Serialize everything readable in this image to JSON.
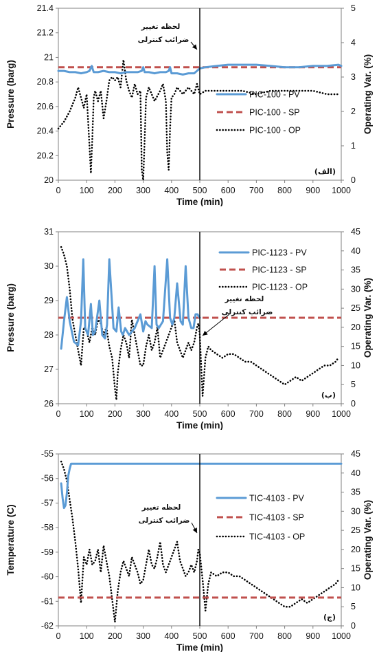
{
  "colors": {
    "pv": "#5b9bd5",
    "sp": "#c0504d",
    "op": "#000000",
    "axis": "#808080"
  },
  "chart_data": [
    {
      "type": "line",
      "panel_tag": "(الف)",
      "ylabel": "Pressure (barg)",
      "ylabel2": "Operating Var. (%)",
      "xlabel": "Time (min)",
      "xlim": [
        0,
        1000
      ],
      "ylim": [
        20,
        21.4
      ],
      "y2lim": [
        0,
        5
      ],
      "xticks": [
        0,
        100,
        200,
        300,
        400,
        500,
        600,
        700,
        800,
        900,
        1000
      ],
      "yticks": [
        20,
        20.2,
        20.4,
        20.6,
        20.8,
        21,
        21.2,
        21.4
      ],
      "yticks_labels": [
        "20",
        "20.2",
        "20.4",
        "20.6",
        "20.8",
        "21",
        "21.2",
        "21.4"
      ],
      "y2ticks": [
        0,
        1,
        2,
        3,
        4,
        5
      ],
      "legend_position": "center-right",
      "vline_x": 500,
      "annotation": {
        "line1": "لحظه تغییر",
        "line2": "ضرائب کنترلی"
      },
      "series": [
        {
          "name": "PIC-100 - PV",
          "axis": "left",
          "style": "solid",
          "x": [
            0,
            20,
            40,
            60,
            80,
            100,
            110,
            118,
            125,
            140,
            160,
            180,
            200,
            220,
            240,
            260,
            280,
            295,
            300,
            305,
            320,
            340,
            360,
            380,
            390,
            395,
            400,
            420,
            440,
            460,
            480,
            500,
            520,
            560,
            600,
            650,
            700,
            750,
            800,
            850,
            900,
            950,
            990,
            1000
          ],
          "y": [
            20.89,
            20.89,
            20.88,
            20.88,
            20.87,
            20.88,
            20.89,
            20.93,
            20.88,
            20.88,
            20.89,
            20.88,
            20.88,
            20.87,
            20.88,
            20.88,
            20.88,
            20.89,
            20.92,
            20.88,
            20.88,
            20.87,
            20.88,
            20.88,
            20.89,
            20.92,
            20.87,
            20.87,
            20.86,
            20.87,
            20.87,
            20.91,
            20.92,
            20.93,
            20.94,
            20.94,
            20.94,
            20.93,
            20.92,
            20.92,
            20.93,
            20.93,
            20.94,
            20.93
          ]
        },
        {
          "name": "PIC-100 - SP",
          "axis": "left",
          "style": "dashed",
          "x": [
            0,
            1000
          ],
          "y": [
            20.92,
            20.92
          ]
        },
        {
          "name": "PIC-100 - OP",
          "axis": "right",
          "style": "dotted",
          "x": [
            0,
            20,
            40,
            60,
            70,
            80,
            90,
            100,
            110,
            115,
            120,
            125,
            130,
            140,
            150,
            160,
            170,
            180,
            190,
            200,
            210,
            220,
            230,
            240,
            250,
            260,
            270,
            280,
            290,
            295,
            300,
            305,
            310,
            320,
            340,
            360,
            370,
            380,
            385,
            390,
            395,
            400,
            410,
            420,
            440,
            460,
            480,
            490,
            500,
            520,
            560,
            600,
            650,
            700,
            750,
            800,
            850,
            900,
            950,
            990
          ],
          "y": [
            1.5,
            1.7,
            2.0,
            2.4,
            2.7,
            2.4,
            2.1,
            2.5,
            1.0,
            0.2,
            1.2,
            2.4,
            2.6,
            2.3,
            2.6,
            1.8,
            2.3,
            2.9,
            3.0,
            2.9,
            3.0,
            2.7,
            3.5,
            2.9,
            2.6,
            2.4,
            2.8,
            2.5,
            2.6,
            0.3,
            0.0,
            1.2,
            2.4,
            2.7,
            2.3,
            2.6,
            2.8,
            2.3,
            0.8,
            0.3,
            1.5,
            2.4,
            2.5,
            2.7,
            2.5,
            2.7,
            2.5,
            2.8,
            2.5,
            2.6,
            2.6,
            2.6,
            2.6,
            2.5,
            2.6,
            2.6,
            2.6,
            2.6,
            2.5,
            2.5
          ]
        }
      ]
    },
    {
      "type": "line",
      "panel_tag": "(ب)",
      "ylabel": "Pressure (barg)",
      "ylabel2": "Operating Var. (%)",
      "xlabel": "Time (min)",
      "xlim": [
        0,
        1000
      ],
      "ylim": [
        26,
        31
      ],
      "y2lim": [
        0,
        45
      ],
      "xticks": [
        0,
        100,
        200,
        300,
        400,
        500,
        600,
        700,
        800,
        900,
        1000
      ],
      "yticks": [
        26,
        27,
        28,
        29,
        30,
        31
      ],
      "yticks_labels": [
        "26",
        "27",
        "28",
        "29",
        "30",
        "31"
      ],
      "y2ticks": [
        0,
        5,
        10,
        15,
        20,
        25,
        30,
        35,
        40,
        45
      ],
      "legend_position": "top-right",
      "vline_x": 500,
      "annotation": {
        "line1": "لحظه تغییر",
        "line2": "ضرائب کنترلی"
      },
      "series": [
        {
          "name": "PIC-1123 - PV",
          "axis": "left",
          "style": "solid",
          "x": [
            10,
            20,
            30,
            40,
            55,
            70,
            80,
            88,
            95,
            105,
            115,
            122,
            130,
            145,
            155,
            165,
            172,
            180,
            195,
            205,
            213,
            222,
            228,
            236,
            250,
            270,
            290,
            300,
            308,
            315,
            330,
            340,
            347,
            355,
            370,
            385,
            395,
            403,
            410,
            420,
            432,
            440,
            450,
            460,
            470,
            478,
            485,
            492,
            500
          ],
          "y": [
            27.6,
            28.4,
            29.1,
            28.4,
            27.8,
            27.7,
            28.4,
            30.2,
            28.2,
            28.0,
            28.9,
            28.0,
            28.1,
            29.0,
            28.0,
            27.9,
            28.3,
            30.2,
            28.2,
            28.1,
            28.8,
            28.1,
            28.0,
            28.2,
            28.0,
            28.2,
            28.6,
            28.1,
            28.4,
            28.3,
            28.2,
            30.0,
            28.3,
            28.2,
            28.4,
            30.2,
            28.5,
            28.3,
            28.5,
            29.5,
            28.4,
            28.3,
            30.0,
            28.5,
            28.2,
            28.2,
            28.6,
            28.6,
            28.5
          ]
        },
        {
          "name": "PIC-1123 - SP",
          "axis": "left",
          "style": "dashed",
          "x": [
            0,
            1000
          ],
          "y": [
            28.5,
            28.5
          ]
        },
        {
          "name": "PIC-1123 - OP",
          "axis": "right",
          "style": "dotted",
          "x": [
            10,
            20,
            30,
            40,
            50,
            60,
            70,
            80,
            90,
            100,
            110,
            120,
            130,
            140,
            150,
            160,
            170,
            180,
            190,
            200,
            205,
            210,
            220,
            230,
            240,
            250,
            260,
            270,
            280,
            290,
            300,
            310,
            320,
            330,
            340,
            350,
            360,
            370,
            380,
            390,
            400,
            410,
            420,
            430,
            440,
            450,
            460,
            470,
            480,
            490,
            495,
            500,
            510,
            520,
            530,
            540,
            560,
            580,
            600,
            620,
            640,
            660,
            680,
            700,
            720,
            740,
            760,
            780,
            800,
            820,
            840,
            860,
            880,
            900,
            920,
            940,
            960,
            980,
            990
          ],
          "y": [
            41,
            39,
            36,
            30,
            22,
            18,
            14,
            10,
            20,
            19,
            16,
            20,
            18,
            22,
            21,
            18,
            20,
            15,
            12,
            4,
            1,
            8,
            14,
            18,
            16,
            12,
            22,
            18,
            14,
            10,
            10,
            15,
            18,
            14,
            16,
            20,
            12,
            14,
            16,
            18,
            20,
            22,
            16,
            14,
            12,
            14,
            16,
            14,
            16,
            20,
            21,
            18,
            2,
            12,
            15,
            14,
            13,
            12,
            13,
            13,
            12,
            11,
            11,
            10,
            9,
            8,
            7,
            6,
            5,
            6,
            7,
            6,
            7,
            8,
            9,
            10,
            10,
            11,
            12
          ]
        }
      ]
    },
    {
      "type": "line",
      "panel_tag": "(ج)",
      "ylabel": "Temperature (C)",
      "ylabel2": "Operating Var. (%)",
      "xlabel": "Time (min)",
      "xlim": [
        0,
        1000
      ],
      "ylim": [
        -62,
        -55
      ],
      "y2lim": [
        0,
        45
      ],
      "xticks": [
        0,
        100,
        200,
        300,
        400,
        500,
        600,
        700,
        800,
        900,
        1000
      ],
      "yticks": [
        -62,
        -61,
        -60,
        -59,
        -58,
        -57,
        -56,
        -55
      ],
      "yticks_labels": [
        "-62",
        "-61",
        "-60",
        "-59",
        "-58",
        "-57",
        "-56",
        "-55"
      ],
      "y2ticks": [
        0,
        5,
        10,
        15,
        20,
        25,
        30,
        35,
        40,
        45
      ],
      "legend_position": "center-right",
      "vline_x": 500,
      "annotation": {
        "line1": "لحظه تغییر",
        "line2": "ضرائب کنترلی"
      },
      "series": [
        {
          "name": "TIC-4103 - PV",
          "axis": "left",
          "style": "solid",
          "x": [
            10,
            15,
            20,
            25,
            30,
            35,
            40,
            45,
            50,
            60,
            100,
            200,
            300,
            400,
            500,
            600,
            700,
            800,
            900,
            1000
          ],
          "y": [
            -56.2,
            -56.8,
            -57.2,
            -57.1,
            -56.6,
            -55.9,
            -55.6,
            -55.4,
            -55.4,
            -55.4,
            -55.4,
            -55.4,
            -55.4,
            -55.4,
            -55.4,
            -55.4,
            -55.4,
            -55.4,
            -55.4,
            -55.4
          ]
        },
        {
          "name": "TIC-4103 - SP",
          "axis": "left",
          "style": "dashed",
          "x": [
            0,
            1000
          ],
          "y": [
            -60.85,
            -60.85
          ]
        },
        {
          "name": "TIC-4103 - OP",
          "axis": "right",
          "style": "dotted",
          "x": [
            10,
            20,
            30,
            40,
            50,
            60,
            70,
            80,
            90,
            100,
            110,
            120,
            130,
            140,
            150,
            160,
            170,
            180,
            190,
            200,
            210,
            220,
            230,
            240,
            250,
            260,
            270,
            280,
            290,
            300,
            310,
            320,
            330,
            340,
            350,
            360,
            370,
            380,
            390,
            400,
            410,
            420,
            430,
            440,
            450,
            460,
            470,
            480,
            490,
            495,
            500,
            510,
            520,
            530,
            540,
            560,
            580,
            600,
            620,
            640,
            660,
            680,
            700,
            720,
            740,
            760,
            780,
            800,
            820,
            840,
            860,
            880,
            900,
            920,
            940,
            960,
            980,
            990
          ],
          "y": [
            43,
            41,
            38,
            33,
            28,
            22,
            15,
            6,
            18,
            16,
            20,
            16,
            17,
            20,
            14,
            21,
            17,
            13,
            7,
            1,
            9,
            14,
            17,
            15,
            13,
            18,
            16,
            14,
            11,
            12,
            16,
            20,
            16,
            15,
            18,
            22,
            16,
            14,
            16,
            18,
            20,
            22,
            17,
            15,
            13,
            14,
            16,
            14,
            17,
            20,
            19,
            12,
            4,
            11,
            14,
            13,
            14,
            14,
            13,
            13,
            12,
            11,
            10,
            9,
            8,
            7,
            6,
            5,
            5,
            6,
            7,
            6,
            7,
            8,
            9,
            10,
            11,
            12
          ]
        }
      ]
    }
  ]
}
